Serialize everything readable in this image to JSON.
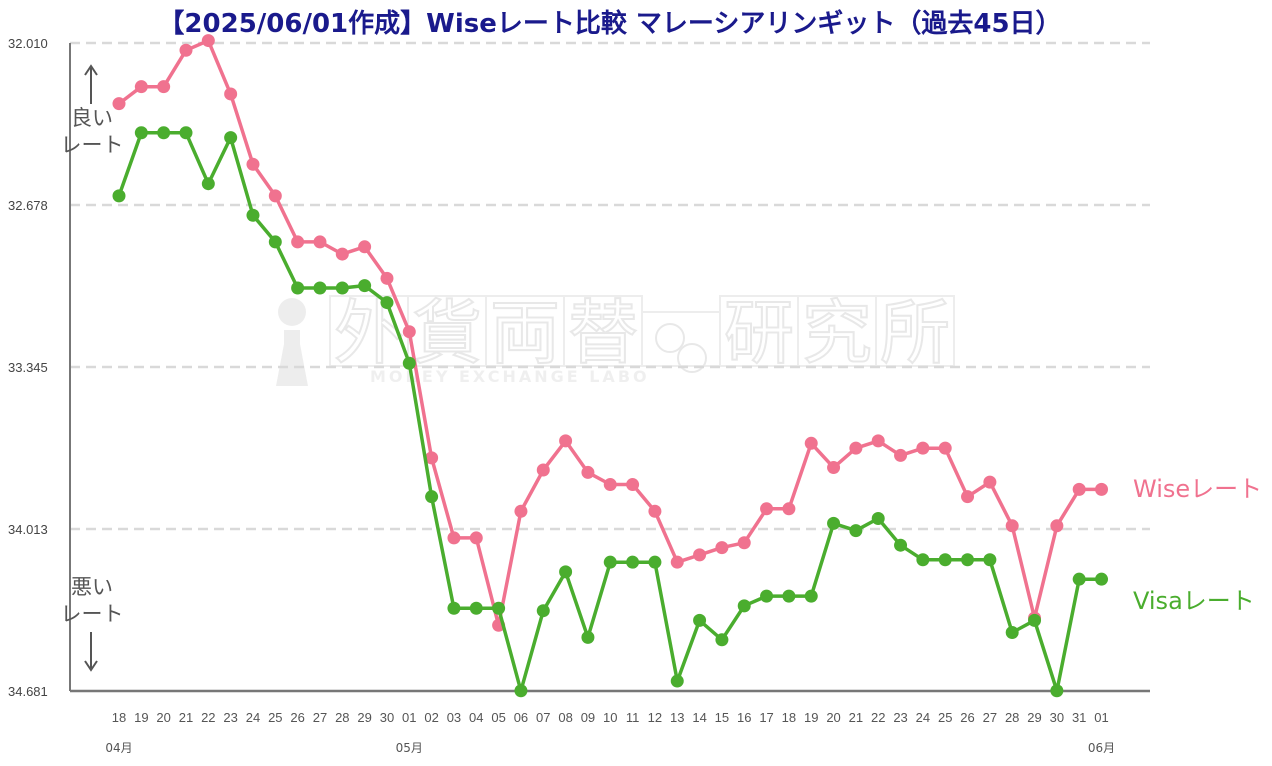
{
  "title": "【2025/06/01作成】Wiseレート比較 マレーシアリンギット（過去45日）",
  "side_labels": {
    "good_line1": "良い",
    "good_line2": "レート",
    "bad_line1": "悪い",
    "bad_line2": "レート"
  },
  "watermark": {
    "chars": [
      "外",
      "貨",
      "両",
      "替",
      "研",
      "究",
      "所"
    ],
    "sub": "MONEY EXCHANGE LABO"
  },
  "colors": {
    "wise": "#f0728f",
    "visa": "#4aad2e",
    "grid": "#d9d9d9",
    "axis": "#777777",
    "title": "#1a1a8c"
  },
  "chart_data": {
    "type": "line",
    "title": "【2025/06/01作成】Wiseレート比較 マレーシアリンギット（過去45日）",
    "x": [
      "18",
      "19",
      "20",
      "21",
      "22",
      "23",
      "24",
      "25",
      "26",
      "27",
      "28",
      "29",
      "30",
      "01",
      "02",
      "03",
      "04",
      "05",
      "06",
      "07",
      "08",
      "09",
      "10",
      "11",
      "12",
      "13",
      "14",
      "15",
      "16",
      "17",
      "18",
      "19",
      "20",
      "21",
      "22",
      "23",
      "24",
      "25",
      "26",
      "27",
      "28",
      "29",
      "30",
      "31",
      "01"
    ],
    "month_labels": [
      {
        "index": 0,
        "label": "04月"
      },
      {
        "index": 13,
        "label": "05月"
      },
      {
        "index": 44,
        "label": "06月"
      }
    ],
    "y_ticks": [
      "32.010",
      "32.678",
      "33.345",
      "34.013",
      "34.681"
    ],
    "ylim": [
      32.01,
      34.681
    ],
    "y_inverted": true,
    "grid": true,
    "series": [
      {
        "name": "Wiseレート",
        "values": [
          32.26,
          32.19,
          32.19,
          32.04,
          32.0,
          32.22,
          32.51,
          32.64,
          32.83,
          32.83,
          32.88,
          32.85,
          32.98,
          33.2,
          33.72,
          34.05,
          34.05,
          34.41,
          33.94,
          33.77,
          33.65,
          33.78,
          33.83,
          33.83,
          33.94,
          34.15,
          34.12,
          34.09,
          34.07,
          33.93,
          33.93,
          33.66,
          33.76,
          33.68,
          33.65,
          33.71,
          33.68,
          33.68,
          33.88,
          33.82,
          34.0,
          34.38,
          34.0,
          33.85,
          33.85
        ]
      },
      {
        "name": "Visaレート",
        "values": [
          32.64,
          32.38,
          32.38,
          32.38,
          32.59,
          32.4,
          32.72,
          32.83,
          33.02,
          33.02,
          33.02,
          33.01,
          33.08,
          33.33,
          33.88,
          34.34,
          34.34,
          34.34,
          34.68,
          34.35,
          34.19,
          34.46,
          34.15,
          34.15,
          34.15,
          34.64,
          34.39,
          34.47,
          34.33,
          34.29,
          34.29,
          34.29,
          33.99,
          34.02,
          33.97,
          34.08,
          34.14,
          34.14,
          34.14,
          34.14,
          34.44,
          34.39,
          34.68,
          34.22,
          34.22
        ]
      }
    ]
  }
}
